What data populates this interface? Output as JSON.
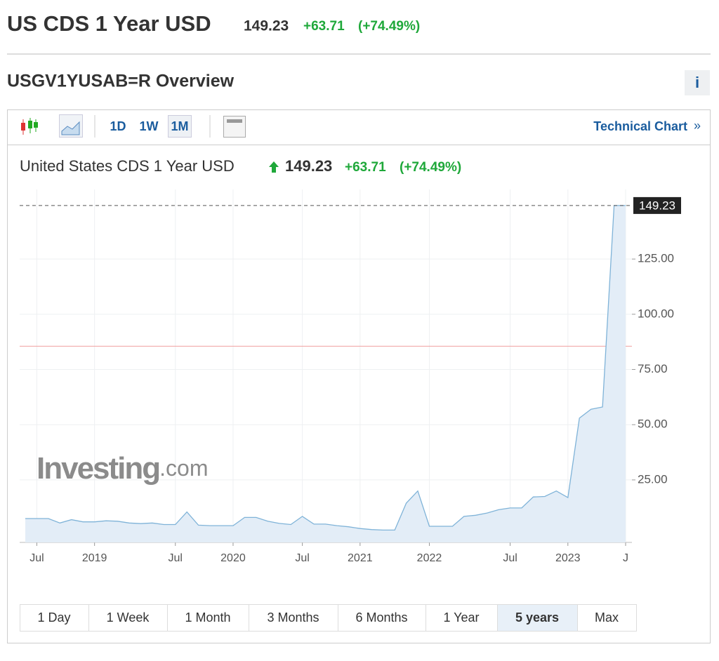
{
  "header": {
    "title": "US CDS 1 Year USD",
    "price": 149.23,
    "change": "+63.71",
    "change_percent": "(+74.49%)"
  },
  "overview": {
    "title": "USGV1YUSAB=R Overview",
    "info": "i"
  },
  "toolbar": {
    "intervals": [
      "1D",
      "1W",
      "1M"
    ],
    "selected_interval": "1M",
    "technical_chart": "Technical Chart"
  },
  "chart_data": {
    "type": "line",
    "title": "United States CDS 1 Year USD",
    "price": 149.23,
    "change": "+63.71",
    "change_percent": "(+74.49%)",
    "watermark": {
      "brand": "Investing",
      "suffix": ".com"
    },
    "categories": [
      null,
      "Jul",
      null,
      null,
      null,
      null,
      "2019",
      null,
      null,
      null,
      null,
      null,
      null,
      "Jul",
      null,
      null,
      null,
      null,
      "2020",
      null,
      null,
      null,
      null,
      null,
      "Jul",
      null,
      null,
      null,
      null,
      "2021",
      null,
      null,
      null,
      null,
      null,
      "2022",
      null,
      null,
      null,
      null,
      null,
      null,
      "Jul",
      null,
      null,
      null,
      null,
      "2023",
      null,
      null,
      null,
      null,
      "J"
    ],
    "series": [
      {
        "name": "United States CDS 1 Year USD",
        "color": "#7fb3d8",
        "fill": "#e3edf7",
        "values": [
          7.5,
          7.5,
          7.5,
          5.5,
          7,
          6,
          6,
          6.5,
          6.3,
          5.5,
          5.2,
          5.5,
          4.8,
          4.8,
          10.5,
          4.5,
          4.3,
          4.3,
          4.3,
          8,
          8,
          6.3,
          5.3,
          4.8,
          8.5,
          5,
          5,
          4.3,
          3.8,
          3,
          2.5,
          2.3,
          2.3,
          14.5,
          20,
          4,
          4,
          4,
          8.5,
          9,
          10,
          11.5,
          12.3,
          12.3,
          17.3,
          17.5,
          20,
          17,
          53,
          57,
          58,
          149.23,
          149.23
        ]
      }
    ],
    "last_value": 149.23,
    "previous_close": 85.52,
    "ylim": [
      -3.3,
      156.5
    ],
    "yticks": [
      {
        "value": 25,
        "label": "25.00"
      },
      {
        "value": 50,
        "label": "50.00"
      },
      {
        "value": 75,
        "label": "75.00"
      },
      {
        "value": 100,
        "label": "100.00"
      },
      {
        "value": 125,
        "label": "125.00"
      }
    ],
    "grid": true
  },
  "ranges": {
    "options": [
      "1 Day",
      "1 Week",
      "1 Month",
      "3 Months",
      "6 Months",
      "1 Year",
      "5 years",
      "Max"
    ],
    "selected": "5 years"
  }
}
